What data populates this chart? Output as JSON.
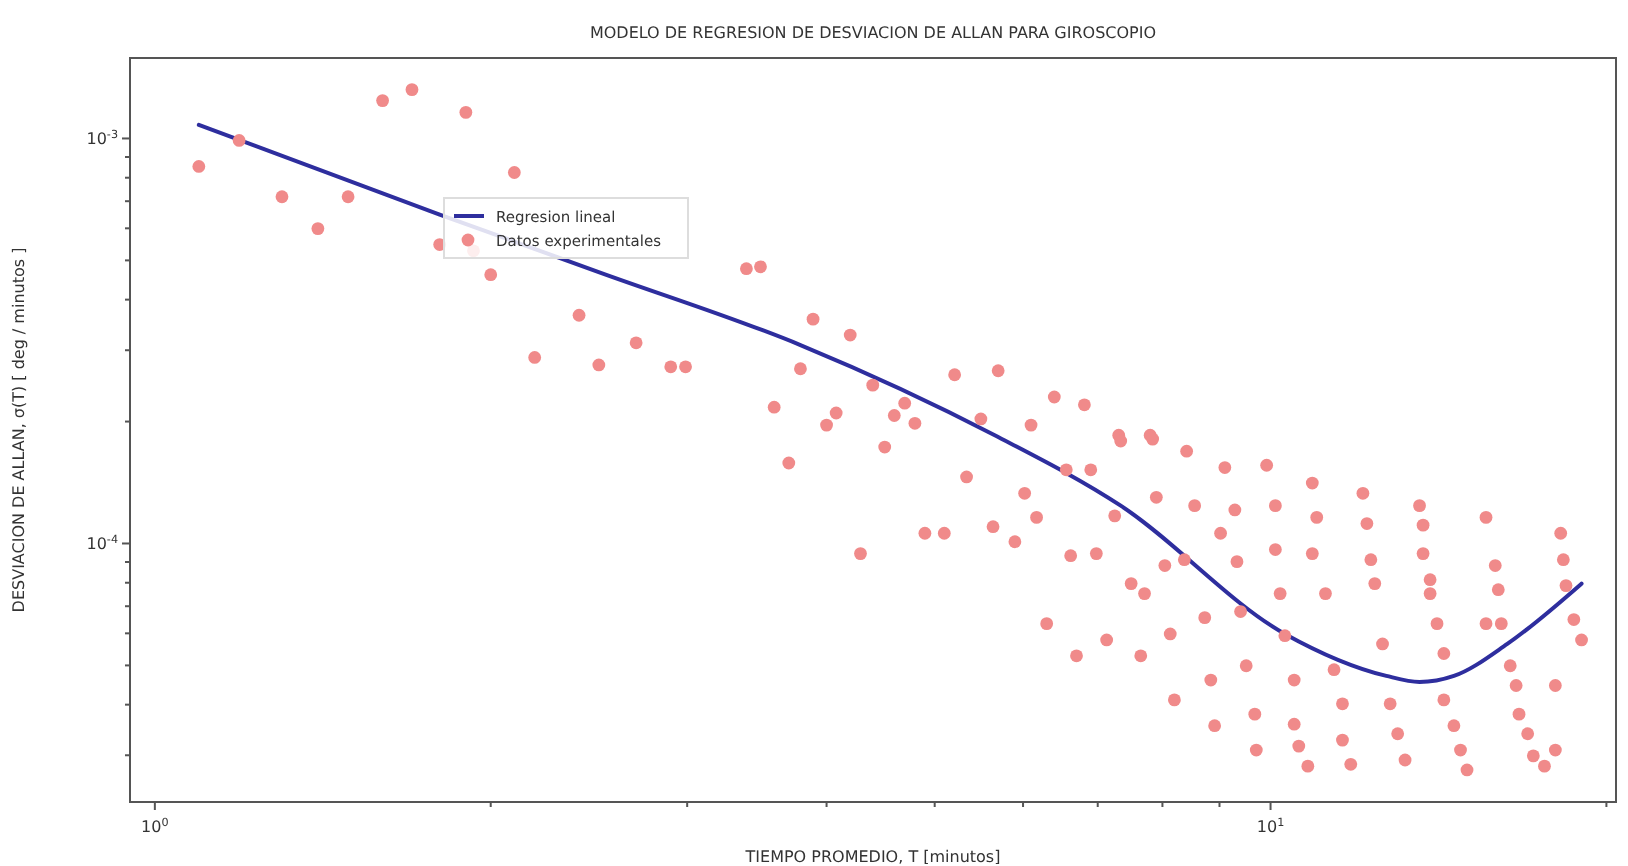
{
  "chart_data": {
    "type": "line",
    "title": "MODELO DE REGRESION DE DESVIACION DE ALLAN PARA GIROSCOPIO",
    "xlabel": "TIEMPO PROMEDIO, T [minutos]",
    "ylabel": "DESVIACION DE ALLAN, σ(T) [ deg / minutos ]",
    "log": "xy",
    "legend": "top left",
    "line_style": "solid",
    "xlim": [
      0.95,
      20.4
    ],
    "ylim": [
      2.3e-05,
      0.00158
    ],
    "xticks": [
      {
        "value": 1,
        "label": "10$^{0}$"
      },
      {
        "value": 2,
        "label": null
      },
      {
        "value": 3,
        "label": null
      },
      {
        "value": 4,
        "label": null
      },
      {
        "value": 5,
        "label": null
      },
      {
        "value": 6,
        "label": null
      },
      {
        "value": 7,
        "label": null
      },
      {
        "value": 8,
        "label": null
      },
      {
        "value": 9,
        "label": null
      },
      {
        "value": 10,
        "label": "10$^{1}$"
      },
      {
        "value": 20,
        "label": null
      }
    ],
    "yticks": [
      {
        "value": 3e-05,
        "label": null
      },
      {
        "value": 4e-05,
        "label": null
      },
      {
        "value": 5e-05,
        "label": null
      },
      {
        "value": 6e-05,
        "label": null
      },
      {
        "value": 7e-05,
        "label": null
      },
      {
        "value": 8e-05,
        "label": null
      },
      {
        "value": 9e-05,
        "label": null
      },
      {
        "value": 0.0001,
        "label": "10$^{-4}$"
      },
      {
        "value": 0.0002,
        "label": null
      },
      {
        "value": 0.0003,
        "label": null
      },
      {
        "value": 0.0004,
        "label": null
      },
      {
        "value": 0.0005,
        "label": null
      },
      {
        "value": 0.0006,
        "label": null
      },
      {
        "value": 0.0007,
        "label": null
      },
      {
        "value": 0.0008,
        "label": null
      },
      {
        "value": 0.0009,
        "label": null
      },
      {
        "value": 0.001,
        "label": "10$^{-3}$"
      }
    ],
    "series": [
      {
        "name": "Regresion lineal",
        "color": "#2e2e9e",
        "x": [
          1.095,
          1.8,
          2.51,
          3.79,
          5.66,
          7.34,
          10.3,
          12.7,
          13.6,
          14.6,
          16.3,
          19.0
        ],
        "values": [
          0.00108,
          0.000649,
          0.000466,
          0.000309,
          0.000185,
          0.000124,
          5.98e-05,
          4.71e-05,
          4.55e-05,
          4.71e-05,
          5.65e-05,
          7.96e-05
        ]
      },
      {
        "name": "Datos experimentales",
        "type": "scatter",
        "marker": "circle",
        "color": "#f08a8a",
        "x": [
          1.095,
          1.19,
          1.3,
          1.4,
          1.49,
          1.6,
          1.7,
          1.9,
          2.1,
          1.8,
          1.93,
          2.0,
          2.4,
          2.19,
          2.5,
          2.7,
          2.9,
          2.99,
          3.39,
          3.49,
          3.59,
          3.79,
          3.89,
          4.0,
          3.7,
          4.2,
          4.08,
          4.4,
          4.7,
          4.6,
          4.8,
          5.21,
          5.7,
          6.4,
          6.81,
          5.5,
          6.1,
          7.31,
          7.8,
          4.51,
          5.34,
          4.29,
          4.9,
          5.1,
          5.64,
          5.9,
          6.02,
          6.17,
          6.56,
          6.9,
          7.34,
          7.84,
          8.41,
          7.25,
          6.62,
          6.98,
          7.5,
          7.71,
          7.9,
          8.55,
          8.04,
          8.37,
          9.1,
          9.92,
          10.9,
          9.29,
          10.1,
          11.0,
          9.02,
          9.33,
          10.1,
          10.9,
          12.1,
          12.2,
          13.6,
          13.7,
          12.3,
          13.7,
          6.3,
          7.13,
          6.7,
          7.65,
          8.13,
          8.73,
          9.4,
          10.2,
          11.2,
          12.4,
          13.9,
          13.9,
          14.1,
          15.6,
          15.9,
          16.0,
          16.1,
          15.6,
          8.2,
          8.84,
          9.51,
          10.3,
          11.4,
          12.6,
          14.3,
          8.91,
          9.68,
          10.5,
          10.5,
          11.6,
          12.8,
          14.3,
          9.71,
          10.6,
          10.8,
          11.8,
          11.6,
          13.0,
          13.2,
          14.6,
          14.8,
          15.0,
          16.4,
          16.6,
          16.7,
          17.0,
          17.2,
          17.6,
          18.0,
          18.0,
          18.2,
          18.3,
          18.4,
          18.7,
          19.0
        ],
        "values": [
          0.000853,
          0.000989,
          0.000718,
          0.000599,
          0.000718,
          0.00124,
          0.00132,
          0.00116,
          0.000824,
          0.000547,
          0.000528,
          0.000461,
          0.000366,
          0.000288,
          0.000276,
          0.000313,
          0.000273,
          0.000273,
          0.000477,
          0.000482,
          0.000217,
          0.00027,
          0.000358,
          0.000196,
          0.000158,
          0.000327,
          0.00021,
          0.000246,
          0.000222,
          0.000207,
          0.000198,
          0.000261,
          0.000267,
          0.00023,
          0.00022,
          0.000203,
          0.000196,
          0.000185,
          0.000185,
          0.000173,
          0.000146,
          9.44e-05,
          0.000106,
          0.000106,
          0.00011,
          0.000101,
          0.000133,
          0.000116,
          0.000152,
          0.000152,
          0.000179,
          0.000181,
          0.000169,
          0.000117,
          9.33e-05,
          9.44e-05,
          7.96e-05,
          7.52e-05,
          0.00013,
          0.000124,
          8.82e-05,
          9.12e-05,
          0.000154,
          0.000156,
          0.000141,
          0.000121,
          0.000124,
          0.000116,
          0.000106,
          9.02e-05,
          9.66e-05,
          9.44e-05,
          0.000133,
          0.000112,
          0.000124,
          0.000111,
          9.12e-05,
          9.44e-05,
          6.34e-05,
          5.78e-05,
          5.28e-05,
          5.28e-05,
          5.98e-05,
          6.56e-05,
          6.79e-05,
          7.52e-05,
          7.52e-05,
          7.96e-05,
          8.14e-05,
          7.52e-05,
          6.34e-05,
          0.000116,
          8.82e-05,
          7.69e-05,
          6.34e-05,
          6.34e-05,
          4.11e-05,
          4.6e-05,
          4.99e-05,
          5.92e-05,
          4.88e-05,
          5.65e-05,
          5.35e-05,
          3.55e-05,
          3.79e-05,
          4.6e-05,
          3.58e-05,
          4.02e-05,
          4.02e-05,
          4.11e-05,
          3.09e-05,
          3.16e-05,
          2.82e-05,
          2.85e-05,
          3.27e-05,
          3.39e-05,
          2.92e-05,
          3.55e-05,
          3.09e-05,
          2.76e-05,
          4.99e-05,
          4.46e-05,
          3.79e-05,
          3.39e-05,
          2.99e-05,
          2.82e-05,
          3.09e-05,
          4.46e-05,
          0.000106,
          9.12e-05,
          7.87e-05,
          6.49e-05,
          5.78e-05
        ]
      }
    ]
  }
}
